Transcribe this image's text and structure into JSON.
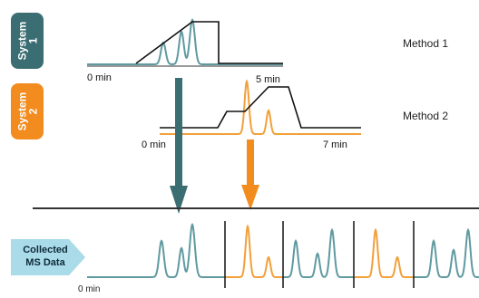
{
  "colors": {
    "system1": "#3b6e73",
    "system2": "#f28c1e",
    "trace1": "#5f9aa0",
    "trace2": "#f2a03a",
    "gradient": "#111111",
    "callout": "#a9dbe8"
  },
  "systems": [
    {
      "label": "System\n1"
    },
    {
      "label": "System\n2"
    }
  ],
  "methods": {
    "method1": "Method 1",
    "method2": "Method 2"
  },
  "time_labels": {
    "m1_start": "0 min",
    "m1_end": "5 min",
    "m2_start": "0 min",
    "m2_end": "7 min",
    "ms_start": "0 min"
  },
  "ms_data_label": "Collected\nMS Data"
}
